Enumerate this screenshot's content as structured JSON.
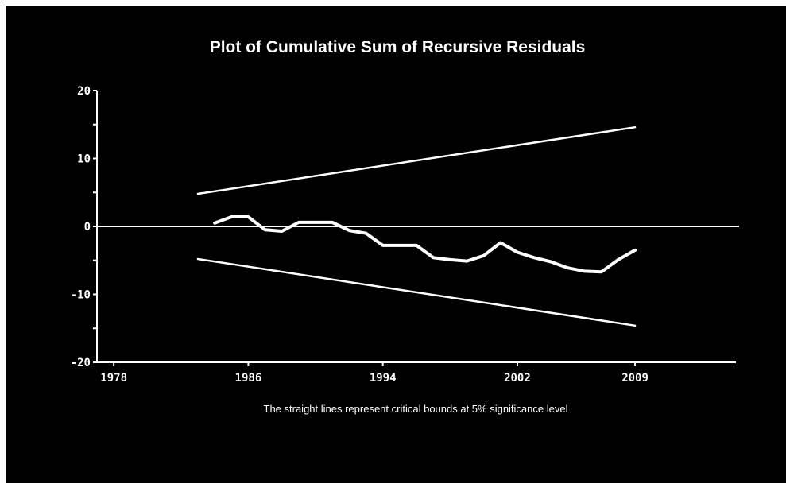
{
  "chart_data": {
    "type": "line",
    "title": "Plot of Cumulative Sum of Recursive Residuals",
    "note": "The straight lines represent critical bounds at 5% significance level",
    "xlabel": "",
    "ylabel": "",
    "x_ticks": [
      1978,
      1986,
      1994,
      2002,
      2009
    ],
    "y_ticks": [
      20,
      10,
      0,
      -10,
      -20
    ],
    "xlim": [
      1977,
      2015
    ],
    "ylim": [
      -20,
      20
    ],
    "zero_line": 0,
    "series": [
      {
        "role": "cusum",
        "x": [
          1984,
          1985,
          1986,
          1987,
          1988,
          1989,
          1990,
          1991,
          1992,
          1993,
          1994,
          1995,
          1996,
          1997,
          1998,
          1999,
          2000,
          2001,
          2002,
          2003,
          2004,
          2005,
          2006,
          2007,
          2008,
          2009
        ],
        "values": [
          0.5,
          1.4,
          1.4,
          -0.5,
          -0.7,
          0.6,
          0.6,
          0.6,
          -0.6,
          -1.0,
          -2.8,
          -2.8,
          -2.8,
          -4.6,
          -4.9,
          -5.1,
          -4.3,
          -2.4,
          -3.8,
          -4.6,
          -5.2,
          -6.1,
          -6.6,
          -6.7,
          -4.9,
          -3.5
        ]
      },
      {
        "role": "upper-bound",
        "x": [
          1983,
          2009
        ],
        "values": [
          4.8,
          14.6
        ]
      },
      {
        "role": "lower-bound",
        "x": [
          1983,
          2009
        ],
        "values": [
          -4.8,
          -14.6
        ]
      }
    ],
    "grid": false,
    "legend": "none"
  },
  "colors": {
    "frame_background": "#ffffff",
    "plot_background": "#000000",
    "foreground": "#ffffff"
  }
}
